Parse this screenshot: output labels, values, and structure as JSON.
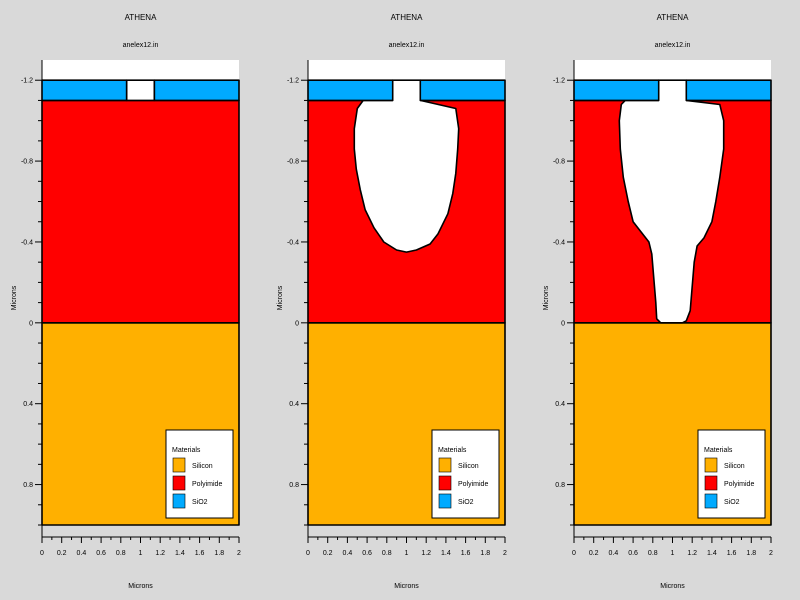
{
  "colors": {
    "background": "#d9d9d9",
    "Silicon": "#ffb000",
    "Polyimide": "#ff0000",
    "SiO2": "#00aaff",
    "void": "#ffffff"
  },
  "chart_data": [
    {
      "type": "area",
      "title": "ATHENA",
      "subtitle": "anelex12.in",
      "xlabel": "Microns",
      "ylabel": "Microns",
      "xlim": [
        0,
        2
      ],
      "ylim": [
        1.0,
        -1.3
      ],
      "y_inverted": true,
      "xticks": [
        "0",
        "0.2",
        "0.4",
        "0.6",
        "0.8",
        "1",
        "1.2",
        "1.4",
        "1.6",
        "1.8",
        "2"
      ],
      "yticks": [
        "-1.2",
        "-0.8",
        "-0.4",
        "0",
        "0.4",
        "0.8"
      ],
      "legend": {
        "title": "Materials",
        "position": "bottom-right",
        "entries": [
          "Silicon",
          "Polyimide",
          "SiO2"
        ]
      },
      "regions": [
        {
          "material": "Silicon",
          "polygon": [
            [
              0,
              0
            ],
            [
              2,
              0
            ],
            [
              2,
              1.0
            ],
            [
              0,
              1.0
            ]
          ]
        },
        {
          "material": "Polyimide",
          "polygon": [
            [
              0,
              -1.1
            ],
            [
              2,
              -1.1
            ],
            [
              2,
              0
            ],
            [
              0,
              0
            ]
          ]
        },
        {
          "material": "SiO2",
          "polygon": [
            [
              0,
              -1.2
            ],
            [
              0.86,
              -1.2
            ],
            [
              0.86,
              -1.1
            ],
            [
              0,
              -1.1
            ]
          ]
        },
        {
          "material": "SiO2",
          "polygon": [
            [
              1.14,
              -1.2
            ],
            [
              2,
              -1.2
            ],
            [
              2,
              -1.1
            ],
            [
              1.14,
              -1.1
            ]
          ]
        },
        {
          "material": "void",
          "polygon": [
            [
              0.86,
              -1.2
            ],
            [
              1.14,
              -1.2
            ],
            [
              1.14,
              -1.1
            ],
            [
              0.86,
              -1.1
            ]
          ]
        }
      ]
    },
    {
      "type": "area",
      "title": "ATHENA",
      "subtitle": "anelex12.in",
      "xlabel": "Microns",
      "ylabel": "Microns",
      "xlim": [
        0,
        2
      ],
      "ylim": [
        1.0,
        -1.3
      ],
      "y_inverted": true,
      "xticks": [
        "0",
        "0.2",
        "0.4",
        "0.6",
        "0.8",
        "1",
        "1.2",
        "1.4",
        "1.6",
        "1.8",
        "2"
      ],
      "yticks": [
        "-1.2",
        "-0.8",
        "-0.4",
        "0",
        "0.4",
        "0.8"
      ],
      "legend": {
        "title": "Materials",
        "position": "bottom-right",
        "entries": [
          "Silicon",
          "Polyimide",
          "SiO2"
        ]
      },
      "regions": [
        {
          "material": "Silicon",
          "polygon": [
            [
              0,
              0
            ],
            [
              2,
              0
            ],
            [
              2,
              1.0
            ],
            [
              0,
              1.0
            ]
          ]
        },
        {
          "material": "Polyimide",
          "polygon": [
            [
              0,
              -1.1
            ],
            [
              2,
              -1.1
            ],
            [
              2,
              0
            ],
            [
              0,
              0
            ]
          ]
        },
        {
          "material": "void",
          "polygon": [
            [
              0.86,
              -1.2
            ],
            [
              1.14,
              -1.2
            ],
            [
              1.14,
              -1.1
            ],
            [
              1.5,
              -1.06
            ],
            [
              1.53,
              -0.96
            ],
            [
              1.52,
              -0.86
            ],
            [
              1.5,
              -0.74
            ],
            [
              1.47,
              -0.64
            ],
            [
              1.42,
              -0.54
            ],
            [
              1.32,
              -0.44
            ],
            [
              1.24,
              -0.39
            ],
            [
              1.1,
              -0.36
            ],
            [
              1.0,
              -0.35
            ],
            [
              0.9,
              -0.36
            ],
            [
              0.77,
              -0.4
            ],
            [
              0.67,
              -0.47
            ],
            [
              0.58,
              -0.56
            ],
            [
              0.53,
              -0.66
            ],
            [
              0.49,
              -0.76
            ],
            [
              0.47,
              -0.86
            ],
            [
              0.47,
              -0.96
            ],
            [
              0.5,
              -1.06
            ],
            [
              0.56,
              -1.1
            ],
            [
              0.86,
              -1.1
            ]
          ]
        },
        {
          "material": "SiO2",
          "polygon": [
            [
              0,
              -1.2
            ],
            [
              0.86,
              -1.2
            ],
            [
              0.86,
              -1.1
            ],
            [
              0,
              -1.1
            ]
          ]
        },
        {
          "material": "SiO2",
          "polygon": [
            [
              1.14,
              -1.2
            ],
            [
              2,
              -1.2
            ],
            [
              2,
              -1.1
            ],
            [
              1.14,
              -1.1
            ]
          ]
        }
      ]
    },
    {
      "type": "area",
      "title": "ATHENA",
      "subtitle": "anelex12.in",
      "xlabel": "Microns",
      "ylabel": "Microns",
      "xlim": [
        0,
        2
      ],
      "ylim": [
        1.0,
        -1.3
      ],
      "y_inverted": true,
      "xticks": [
        "0",
        "0.2",
        "0.4",
        "0.6",
        "0.8",
        "1",
        "1.2",
        "1.4",
        "1.6",
        "1.8",
        "2"
      ],
      "yticks": [
        "-1.2",
        "-0.8",
        "-0.4",
        "0",
        "0.4",
        "0.8"
      ],
      "legend": {
        "title": "Materials",
        "position": "bottom-right",
        "entries": [
          "Silicon",
          "Polyimide",
          "SiO2"
        ]
      },
      "regions": [
        {
          "material": "Silicon",
          "polygon": [
            [
              0,
              0
            ],
            [
              2,
              0
            ],
            [
              2,
              1.0
            ],
            [
              0,
              1.0
            ]
          ]
        },
        {
          "material": "Polyimide",
          "polygon": [
            [
              0,
              -1.1
            ],
            [
              2,
              -1.1
            ],
            [
              2,
              0
            ],
            [
              0,
              0
            ]
          ]
        },
        {
          "material": "void",
          "polygon": [
            [
              0.86,
              -1.2
            ],
            [
              1.14,
              -1.2
            ],
            [
              1.14,
              -1.1
            ],
            [
              1.48,
              -1.08
            ],
            [
              1.52,
              -1.0
            ],
            [
              1.52,
              -0.86
            ],
            [
              1.48,
              -0.72
            ],
            [
              1.44,
              -0.6
            ],
            [
              1.4,
              -0.5
            ],
            [
              1.32,
              -0.42
            ],
            [
              1.25,
              -0.38
            ],
            [
              1.22,
              -0.3
            ],
            [
              1.2,
              -0.18
            ],
            [
              1.18,
              -0.06
            ],
            [
              1.14,
              -0.01
            ],
            [
              1.1,
              0
            ],
            [
              0.88,
              0
            ],
            [
              0.84,
              -0.02
            ],
            [
              0.83,
              -0.1
            ],
            [
              0.81,
              -0.22
            ],
            [
              0.79,
              -0.34
            ],
            [
              0.76,
              -0.4
            ],
            [
              0.6,
              -0.5
            ],
            [
              0.55,
              -0.6
            ],
            [
              0.5,
              -0.72
            ],
            [
              0.47,
              -0.86
            ],
            [
              0.46,
              -1.0
            ],
            [
              0.48,
              -1.08
            ],
            [
              0.52,
              -1.1
            ],
            [
              0.86,
              -1.1
            ]
          ]
        },
        {
          "material": "SiO2",
          "polygon": [
            [
              0,
              -1.2
            ],
            [
              0.86,
              -1.2
            ],
            [
              0.86,
              -1.1
            ],
            [
              0,
              -1.1
            ]
          ]
        },
        {
          "material": "SiO2",
          "polygon": [
            [
              1.14,
              -1.2
            ],
            [
              2,
              -1.2
            ],
            [
              2,
              -1.1
            ],
            [
              1.14,
              -1.1
            ]
          ]
        }
      ]
    }
  ]
}
